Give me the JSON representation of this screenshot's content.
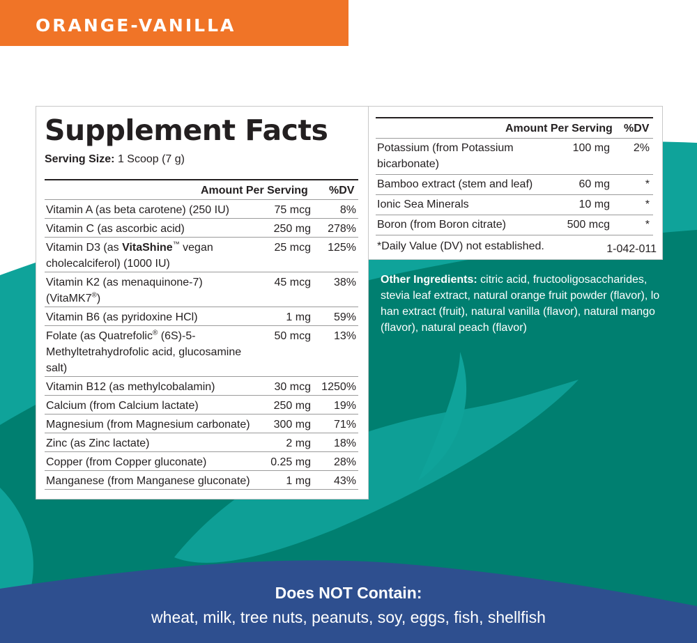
{
  "flavor": "ORANGE-VANILLA",
  "colors": {
    "flavor_banner": "#f07427",
    "teal": "#0fa39a",
    "dark_teal": "#007f70",
    "navy_band": "#2e4f8f"
  },
  "facts": {
    "title": "Supplement Facts",
    "serving_label": "Serving Size:",
    "serving_value": "1 Scoop (7 g)",
    "amount_header": "Amount Per Serving",
    "dv_header": "%DV",
    "rows": [
      {
        "name_pre": "Vitamin A (as beta carotene) (250 IU)",
        "amount": "75 mcg",
        "dv": "8%"
      },
      {
        "name_pre": "Vitamin C (as ascorbic acid)",
        "amount": "250 mg",
        "dv": "278%"
      },
      {
        "name_pre": "Vitamin D3 (as ",
        "name_bold": "VitaShine",
        "name_sup": "™",
        "name_post": " vegan cholecalciferol) (1000 IU)",
        "amount": "25 mcg",
        "dv": "125%"
      },
      {
        "name_pre": "Vitamin K2 (as menaquinone-7) (VitaMK7",
        "name_sup": "®",
        "name_post": ")",
        "amount": "45 mcg",
        "dv": "38%"
      },
      {
        "name_pre": "Vitamin B6 (as pyridoxine HCl)",
        "amount": "1 mg",
        "dv": "59%"
      },
      {
        "name_pre": "Folate (as Quatrefolic",
        "name_sup": "®",
        "name_post": " (6S)-5-Methyltetrahydrofolic acid, glucosamine salt)",
        "amount": "50 mcg",
        "dv": "13%"
      },
      {
        "name_pre": "Vitamin B12 (as methylcobalamin)",
        "amount": "30 mcg",
        "dv": "1250%"
      },
      {
        "name_pre": "Calcium (from Calcium lactate)",
        "amount": "250 mg",
        "dv": "19%"
      },
      {
        "name_pre": "Magnesium (from Magnesium carbonate)",
        "amount": "300 mg",
        "dv": "71%"
      },
      {
        "name_pre": "Zinc (as Zinc lactate)",
        "amount": "2 mg",
        "dv": "18%"
      },
      {
        "name_pre": "Copper (from Copper gluconate)",
        "amount": "0.25 mg",
        "dv": "28%"
      },
      {
        "name_pre": "Manganese (from Manganese gluconate)",
        "amount": "1 mg",
        "dv": "43%"
      }
    ],
    "right_rows": [
      {
        "name": "Potassium (from Potassium bicarbonate)",
        "amount": "100 mg",
        "dv": "2%"
      },
      {
        "name": "Bamboo extract (stem and leaf)",
        "amount": "60 mg",
        "dv": "*"
      },
      {
        "name": "Ionic Sea Minerals",
        "amount": "10 mg",
        "dv": "*"
      },
      {
        "name": "Boron (from Boron citrate)",
        "amount": "500 mcg",
        "dv": "*"
      }
    ],
    "footnote": "*Daily Value (DV) not established.",
    "lot_code": "1-042-011"
  },
  "other_ingredients": {
    "label": "Other Ingredients:",
    "text": " citric acid, fructooligosaccharides, stevia leaf extract, natural orange fruit powder (flavor), lo han extract (fruit), natural vanilla (flavor), natural mango (flavor), natural peach (flavor)"
  },
  "allergens": {
    "title": "Does NOT Contain:",
    "list": "wheat, milk, tree nuts, peanuts, soy, eggs, fish, shellfish"
  }
}
